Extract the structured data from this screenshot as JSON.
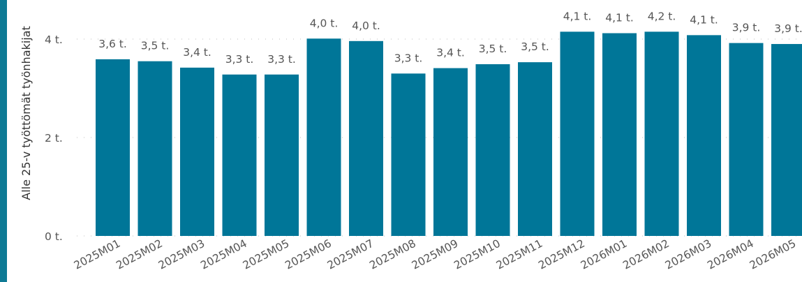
{
  "colors": {
    "accent": "#0E7A95",
    "bar": "#007698",
    "grid": "#BFBFBF"
  },
  "chart_data": {
    "type": "bar",
    "ylabel": "Alle 25-v työttömät työnhakijat",
    "yticks": [
      "0 t.",
      "2 t.",
      "4 t."
    ],
    "ylim": [
      0,
      4500
    ],
    "grid": true,
    "categories": [
      "2025M01",
      "2025M02",
      "2025M03",
      "2025M04",
      "2025M05",
      "2025M06",
      "2025M07",
      "2025M08",
      "2025M09",
      "2025M10",
      "2025M11",
      "2025M12",
      "2026M01",
      "2026M02",
      "2026M03",
      "2026M04",
      "2026M05"
    ],
    "values": [
      3590,
      3550,
      3420,
      3280,
      3280,
      4010,
      3960,
      3300,
      3410,
      3490,
      3530,
      4150,
      4120,
      4150,
      4080,
      3920,
      3900
    ],
    "data_labels": [
      "3,6 t.",
      "3,5 t.",
      "3,4 t.",
      "3,3 t.",
      "3,3 t.",
      "4,0 t.",
      "4,0 t.",
      "3,3 t.",
      "3,4 t.",
      "3,5 t.",
      "3,5 t.",
      "4,1 t.",
      "4,1 t.",
      "4,2 t.",
      "4,1 t.",
      "3,9 t.",
      "3,9 t."
    ]
  }
}
